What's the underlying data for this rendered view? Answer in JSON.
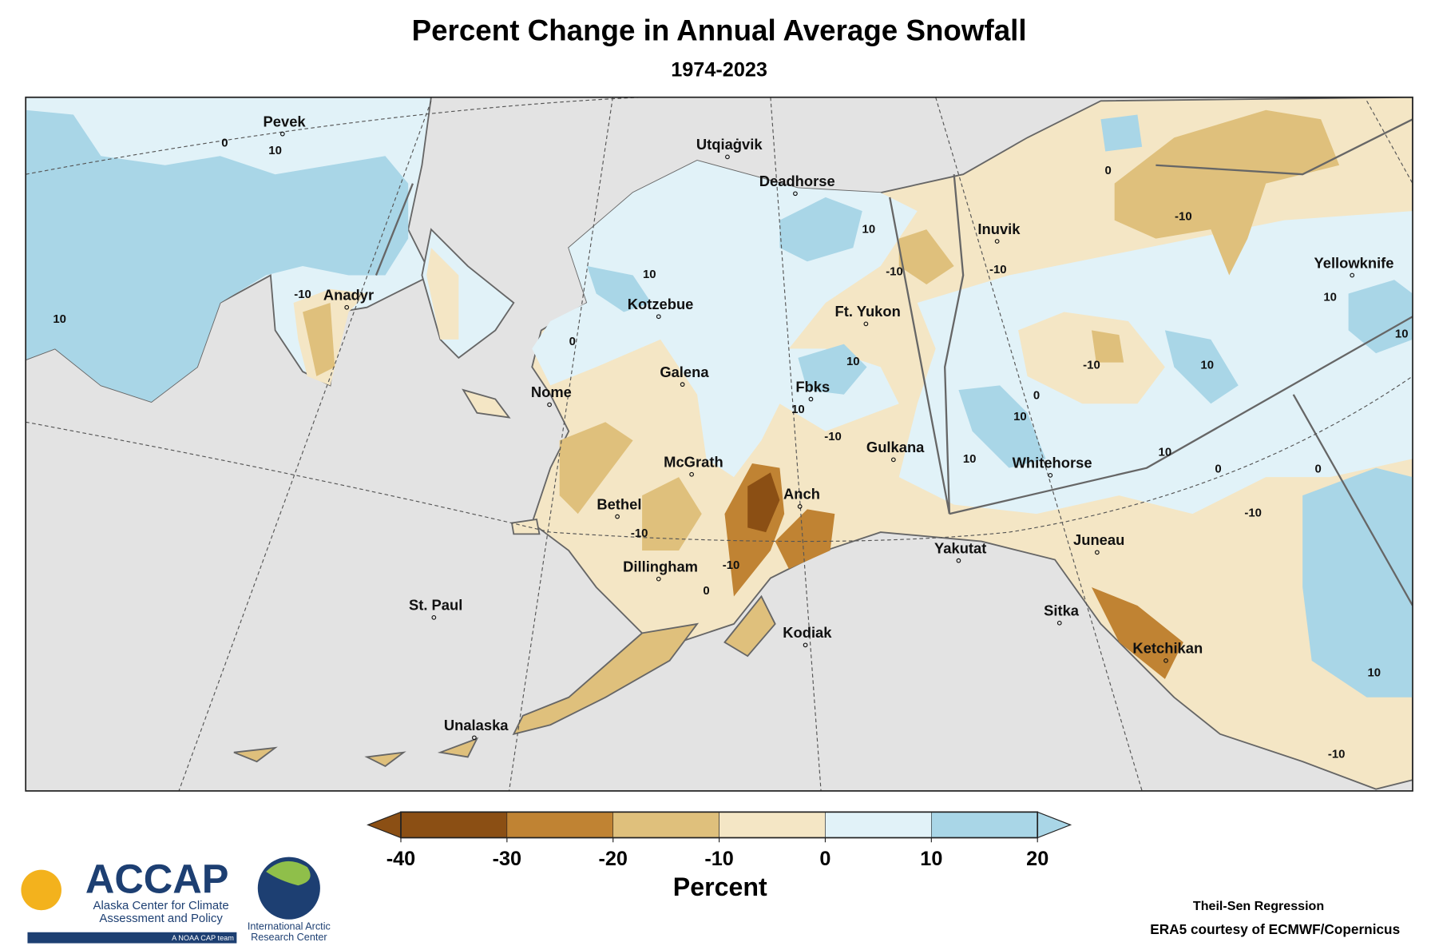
{
  "title": "Percent Change in Annual Average Snowfall",
  "subtitle": "1974-2023",
  "places": [
    "Pevek",
    "Utqiaġvik",
    "Deadhorse",
    "Inuvik",
    "Yellowknife",
    "Anadyr",
    "Kotzebue",
    "Ft. Yukon",
    "Galena",
    "Nome",
    "Fbks",
    "McGrath",
    "Gulkana",
    "Whitehorse",
    "Bethel",
    "Anch",
    "Juneau",
    "Yakutat",
    "Dillingham",
    "St. Paul",
    "Sitka",
    "Kodiak",
    "Ketchikan",
    "Unalaska"
  ],
  "contour_labels": [
    "0",
    "10",
    "-10",
    "10",
    "10",
    "0",
    "-10",
    "10",
    "10",
    "-10",
    "-10",
    "10",
    "0",
    "10",
    "-10",
    "10",
    "10",
    "-10",
    "10",
    "10",
    "0",
    "-10",
    "0",
    "10",
    "0",
    "-10",
    "-10",
    "0",
    "10",
    "-10"
  ],
  "colorbar": {
    "ticks": [
      -40,
      -30,
      -20,
      -10,
      0,
      10,
      20
    ],
    "colors": [
      "#8b4f14",
      "#c08333",
      "#dfc07c",
      "#f4e6c5",
      "#e1f2f8",
      "#a9d6e7"
    ],
    "under_color": "#8b4f14",
    "over_color": "#a9d6e7",
    "label": "Percent"
  },
  "credits": {
    "method": "Theil-Sen Regression",
    "source": "ERA5 courtesy of ECMWF/Copernicus"
  },
  "logos": {
    "accap": "ACCAP",
    "accap_name": "Alaska Center for Climate Assessment and Policy",
    "accap_tag": "A NOAA CAP team",
    "iarc": "International Arctic Research Center"
  }
}
